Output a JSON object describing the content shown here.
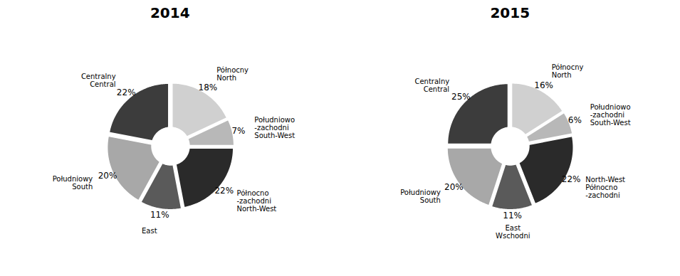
{
  "chart_data": [
    {
      "type": "pie",
      "title": "2014",
      "categories": [
        "Centralny\nCentral",
        "Południowy\nSouth",
        "East",
        "Północno\n-zachodni\nNorth-West",
        "Południowo\n-zachodni\nSouth-West",
        "Północny\nNorth"
      ],
      "values": [
        22,
        20,
        11,
        22,
        7,
        18
      ],
      "value_labels": [
        "22%",
        "20%",
        "11%",
        "22%",
        "7%",
        "18%"
      ],
      "colors": [
        "#3c3c3c",
        "#a8a8a8",
        "#5a5a5a",
        "#2a2a2a",
        "#b8b8b8",
        "#d0d0d0"
      ],
      "data_labels": true
    },
    {
      "type": "pie",
      "title": "2015",
      "categories": [
        "Centralny\nCentral",
        "Południowy\nSouth",
        "East\nWschodni",
        "North-West\nPółnocno\n-zachodni",
        "Południowo\n-zachodni\nSouth-West",
        "Północny\nNorth"
      ],
      "values": [
        25,
        20,
        11,
        22,
        6,
        16
      ],
      "value_labels": [
        "25%",
        "20%",
        "11%",
        "22%",
        "6%",
        "16%"
      ],
      "colors": [
        "#3c3c3c",
        "#a8a8a8",
        "#5a5a5a",
        "#2a2a2a",
        "#b8b8b8",
        "#d0d0d0"
      ],
      "data_labels": true
    }
  ]
}
